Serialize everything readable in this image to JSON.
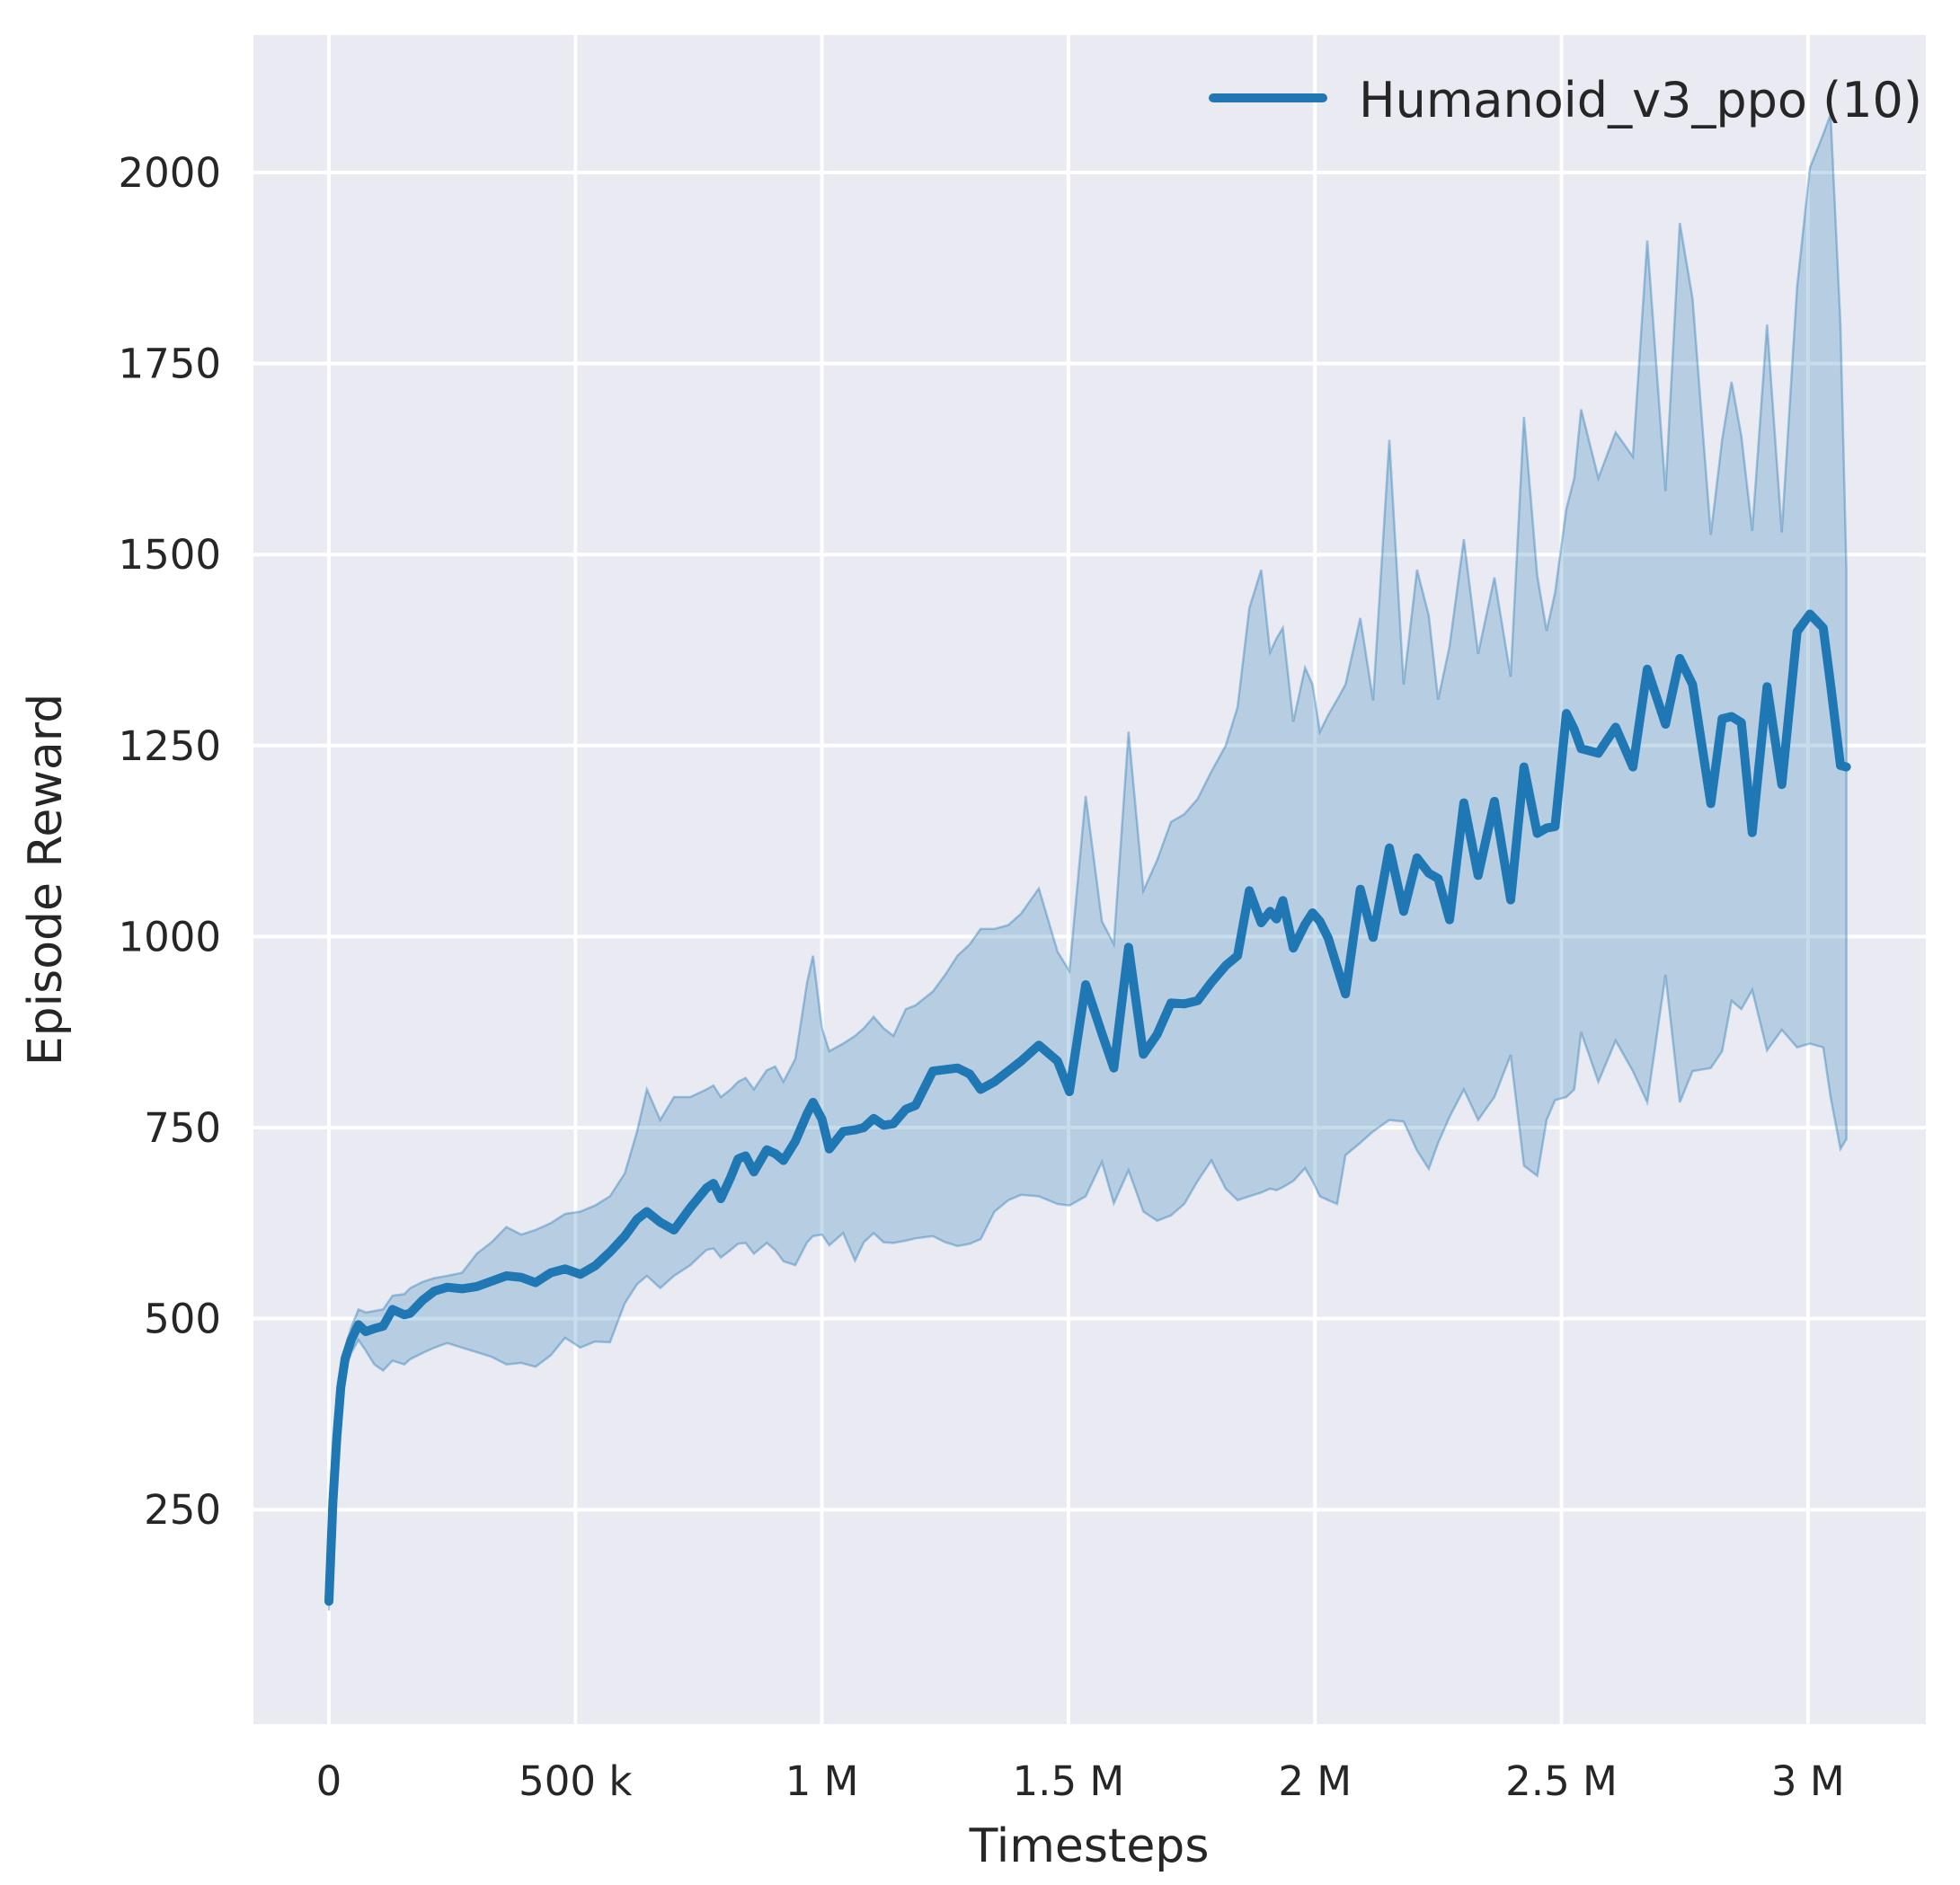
{
  "figure": {
    "background": "#ffffff",
    "panel_background": "#eaeaf2",
    "grid_color": "#ffffff",
    "text_color": "#262626"
  },
  "legend": {
    "entries": [
      {
        "label": "Humanoid_v3_ppo (10)",
        "color": "#1f77b4"
      }
    ]
  },
  "axes": {
    "xlabel": "Timesteps",
    "ylabel": "Episode Reward",
    "x_ticks": [
      {
        "value_k": 0,
        "label": "0"
      },
      {
        "value_k": 500,
        "label": "500 k"
      },
      {
        "value_k": 1000,
        "label": "1 M"
      },
      {
        "value_k": 1500,
        "label": "1.5 M"
      },
      {
        "value_k": 2000,
        "label": "2 M"
      },
      {
        "value_k": 2500,
        "label": "2.5 M"
      },
      {
        "value_k": 3000,
        "label": "3 M"
      }
    ],
    "y_ticks": [
      {
        "value": 250,
        "label": "250"
      },
      {
        "value": 500,
        "label": "500"
      },
      {
        "value": 750,
        "label": "750"
      },
      {
        "value": 1000,
        "label": "1000"
      },
      {
        "value": 1250,
        "label": "1250"
      },
      {
        "value": 1500,
        "label": "1500"
      },
      {
        "value": 1750,
        "label": "1750"
      },
      {
        "value": 2000,
        "label": "2000"
      }
    ]
  },
  "chart_data": {
    "type": "line",
    "title": "",
    "xlabel": "Timesteps",
    "ylabel": "Episode Reward",
    "x_unit": "timesteps (thousands)",
    "xlim_k": [
      -154,
      3234
    ],
    "ylim": [
      -27,
      2180
    ],
    "grid": true,
    "legend_position": "upper right",
    "line_color": "#1f77b4",
    "band_fill_color": "#1f77b4",
    "band_fill_opacity": 0.25,
    "band_edge_opacity": 0.38,
    "x_k": [
      0,
      8,
      16,
      24,
      33,
      45,
      60,
      75,
      92,
      110,
      129,
      153,
      165,
      190,
      214,
      240,
      270,
      300,
      330,
      360,
      390,
      419,
      450,
      479,
      510,
      540,
      570,
      600,
      625,
      645,
      672,
      700,
      733,
      766,
      780,
      795,
      815,
      830,
      845,
      862,
      888,
      905,
      922,
      946,
      970,
      982,
      1000,
      1015,
      1043,
      1067,
      1085,
      1105,
      1125,
      1145,
      1170,
      1190,
      1225,
      1250,
      1275,
      1300,
      1322,
      1350,
      1378,
      1404,
      1440,
      1478,
      1502,
      1535,
      1568,
      1592,
      1622,
      1652,
      1680,
      1708,
      1735,
      1762,
      1790,
      1819,
      1843,
      1867,
      1891,
      1909,
      1922,
      1935,
      1956,
      1980,
      1995,
      2010,
      2027,
      2045,
      2062,
      2092,
      2118,
      2151,
      2180,
      2207,
      2231,
      2250,
      2273,
      2302,
      2331,
      2364,
      2397,
      2424,
      2451,
      2470,
      2487,
      2510,
      2526,
      2540,
      2575,
      2610,
      2645,
      2674,
      2711,
      2740,
      2766,
      2803,
      2826,
      2845,
      2865,
      2887,
      2917,
      2947,
      2978,
      3004,
      3031,
      3046,
      3066,
      3078
    ],
    "series": [
      {
        "name": "Humanoid_v3_ppo (10)",
        "values": [
          130,
          260,
          345,
          410,
          448,
          472,
          492,
          483,
          487,
          490,
          512,
          505,
          507,
          524,
          536,
          541,
          539,
          542,
          549,
          556,
          554,
          547,
          560,
          565,
          558,
          569,
          587,
          608,
          630,
          640,
          626,
          616,
          645,
          671,
          677,
          657,
          685,
          709,
          713,
          692,
          721,
          716,
          707,
          732,
          768,
          783,
          761,
          722,
          745,
          747,
          750,
          762,
          753,
          755,
          774,
          779,
          824,
          826,
          828,
          820,
          800,
          810,
          824,
          837,
          858,
          837,
          797,
          937,
          873,
          828,
          986,
          846,
          872,
          913,
          912,
          916,
          940,
          962,
          975,
          1060,
          1018,
          1033,
          1023,
          1047,
          985,
          1016,
          1031,
          1020,
          998,
          960,
          925,
          1062,
          999,
          1116,
          1033,
          1103,
          1083,
          1076,
          1022,
          1175,
          1080,
          1177,
          1048,
          1222,
          1135,
          1142,
          1144,
          1292,
          1271,
          1246,
          1240,
          1274,
          1222,
          1350,
          1278,
          1364,
          1330,
          1174,
          1285,
          1288,
          1280,
          1136,
          1327,
          1199,
          1399,
          1422,
          1404,
          1330,
          1224,
          1222
        ]
      }
    ],
    "band": {
      "name": "std / min-max envelope over 10 seeds",
      "lower": [
        118,
        245,
        330,
        395,
        432,
        455,
        472,
        458,
        440,
        432,
        445,
        440,
        447,
        455,
        462,
        468,
        462,
        456,
        450,
        440,
        442,
        437,
        452,
        475,
        462,
        470,
        469,
        520,
        545,
        556,
        540,
        556,
        570,
        590,
        592,
        580,
        590,
        598,
        599,
        585,
        599,
        590,
        575,
        570,
        600,
        608,
        610,
        596,
        612,
        576,
        600,
        612,
        600,
        599,
        602,
        605,
        608,
        600,
        595,
        598,
        604,
        640,
        655,
        662,
        660,
        650,
        648,
        660,
        705,
        651,
        694,
        640,
        628,
        635,
        650,
        680,
        707,
        670,
        655,
        660,
        665,
        670,
        668,
        672,
        680,
        697,
        680,
        660,
        655,
        650,
        714,
        730,
        745,
        760,
        758,
        720,
        696,
        730,
        764,
        800,
        760,
        790,
        845,
        700,
        687,
        760,
        786,
        790,
        800,
        875,
        810,
        864,
        824,
        783,
        950,
        783,
        824,
        828,
        850,
        916,
        905,
        930,
        851,
        878,
        855,
        860,
        855,
        790,
        722,
        735
      ],
      "upper": [
        142,
        275,
        360,
        425,
        462,
        488,
        512,
        508,
        510,
        512,
        530,
        532,
        540,
        548,
        553,
        556,
        560,
        585,
        600,
        620,
        610,
        616,
        625,
        637,
        640,
        648,
        660,
        690,
        745,
        800,
        760,
        790,
        790,
        800,
        805,
        790,
        800,
        810,
        815,
        800,
        825,
        830,
        810,
        840,
        940,
        975,
        880,
        850,
        860,
        870,
        880,
        895,
        880,
        870,
        905,
        910,
        928,
        950,
        975,
        990,
        1010,
        1010,
        1015,
        1030,
        1063,
        980,
        955,
        1184,
        1020,
        990,
        1268,
        1060,
        1100,
        1150,
        1160,
        1180,
        1216,
        1250,
        1300,
        1430,
        1480,
        1372,
        1390,
        1404,
        1281,
        1352,
        1330,
        1268,
        1290,
        1310,
        1330,
        1417,
        1309,
        1650,
        1330,
        1480,
        1420,
        1310,
        1380,
        1520,
        1370,
        1470,
        1340,
        1680,
        1472,
        1400,
        1450,
        1560,
        1600,
        1690,
        1600,
        1660,
        1628,
        1911,
        1583,
        1934,
        1835,
        1526,
        1650,
        1726,
        1655,
        1531,
        1801,
        1529,
        1850,
        2006,
        2050,
        2076,
        1800,
        1480
      ]
    }
  }
}
